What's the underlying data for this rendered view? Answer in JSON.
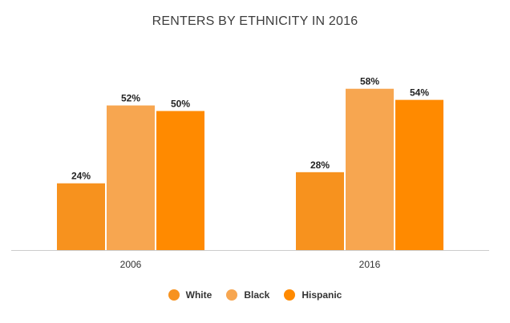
{
  "chart_data": {
    "type": "bar",
    "title": "RENTERS BY ETHNICITY IN 2016",
    "categories": [
      "2006",
      "2016"
    ],
    "series": [
      {
        "name": "White",
        "values": [
          24,
          28
        ],
        "labels": [
          "24%",
          "28%"
        ],
        "color": "#f7921e"
      },
      {
        "name": "Black",
        "values": [
          52,
          58
        ],
        "labels": [
          "52%",
          "58%"
        ],
        "color": "#f7a650"
      },
      {
        "name": "Hispanic",
        "values": [
          50,
          54
        ],
        "labels": [
          "50%",
          "54%"
        ],
        "color": "#ff8a00"
      }
    ],
    "ylim": [
      0,
      60
    ],
    "grid": false,
    "legend": "bottom-center",
    "unit": "%"
  }
}
